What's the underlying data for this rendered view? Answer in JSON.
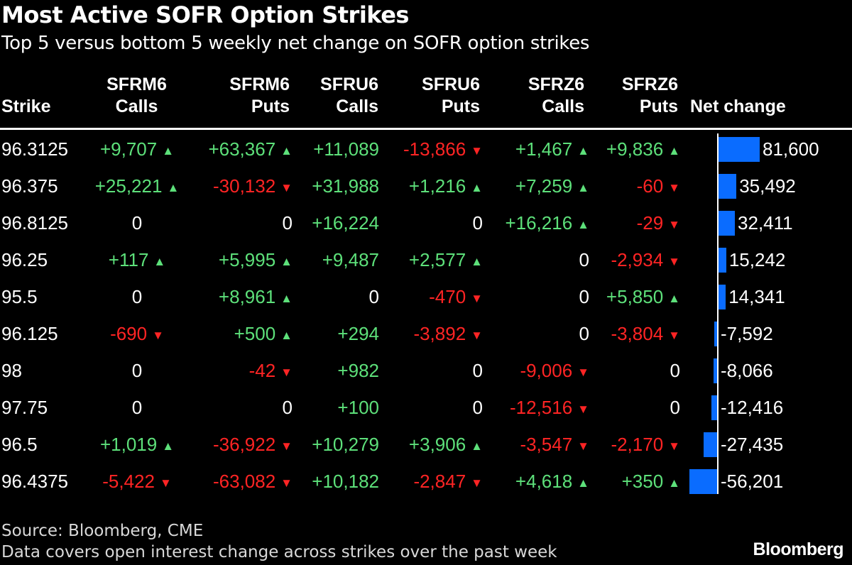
{
  "title": "Most Active SOFR Option Strikes",
  "subtitle": "Top 5 versus bottom 5 weekly net change on SOFR option strikes",
  "columns": [
    {
      "line1": "",
      "line2": "Strike"
    },
    {
      "line1": "SFRM6",
      "line2": "Calls"
    },
    {
      "line1": "SFRM6",
      "line2": "Puts"
    },
    {
      "line1": "SFRU6",
      "line2": "Calls"
    },
    {
      "line1": "SFRU6",
      "line2": "Puts"
    },
    {
      "line1": "SFRZ6",
      "line2": "Calls"
    },
    {
      "line1": "SFRZ6",
      "line2": "Puts"
    },
    {
      "line1": "",
      "line2": "Net change"
    }
  ],
  "colors": {
    "positive": "#5de07a",
    "negative": "#ff2424",
    "bar": "#0a6cff",
    "background": "#000000"
  },
  "chart_data": {
    "type": "table",
    "title": "Most Active SOFR Option Strikes",
    "subtitle": "Top 5 versus bottom 5 weekly net change on SOFR option strikes",
    "rows": [
      {
        "strike": "96.3125",
        "cells": [
          "+9,707",
          "+63,367",
          "+11,089",
          "-13,866",
          "+1,467",
          "+9,836"
        ],
        "net": 81600,
        "net_label": "81,600"
      },
      {
        "strike": "96.375",
        "cells": [
          "+25,221",
          "-30,132",
          "+31,988",
          "+1,216",
          "+7,259",
          "-60"
        ],
        "net": 35492,
        "net_label": "35,492"
      },
      {
        "strike": "96.8125",
        "cells": [
          "0",
          "0",
          "+16,224",
          "0",
          "+16,216",
          "-29"
        ],
        "net": 32411,
        "net_label": "32,411"
      },
      {
        "strike": "96.25",
        "cells": [
          "+117",
          "+5,995",
          "+9,487",
          "+2,577",
          "0",
          "-2,934"
        ],
        "net": 15242,
        "net_label": "15,242"
      },
      {
        "strike": "95.5",
        "cells": [
          "0",
          "+8,961",
          "0",
          "-470",
          "0",
          "+5,850"
        ],
        "net": 14341,
        "net_label": "14,341"
      },
      {
        "strike": "96.125",
        "cells": [
          "-690",
          "+500",
          "+294",
          "-3,892",
          "0",
          "-3,804"
        ],
        "net": -7592,
        "net_label": "-7,592"
      },
      {
        "strike": "98",
        "cells": [
          "0",
          "-42",
          "+982",
          "0",
          "-9,006",
          "0"
        ],
        "net": -8066,
        "net_label": "-8,066"
      },
      {
        "strike": "97.75",
        "cells": [
          "0",
          "0",
          "+100",
          "0",
          "-12,516",
          "0"
        ],
        "net": -12416,
        "net_label": "-12,416"
      },
      {
        "strike": "96.5",
        "cells": [
          "+1,019",
          "-36,922",
          "+10,279",
          "+3,906",
          "-3,547",
          "-2,170"
        ],
        "net": -27435,
        "net_label": "-27,435"
      },
      {
        "strike": "96.4375",
        "cells": [
          "-5,422",
          "-63,082",
          "+10,182",
          "-2,847",
          "+4,618",
          "+350"
        ],
        "net": -56201,
        "net_label": "-56,201"
      }
    ],
    "arrow_columns": [
      true,
      true,
      false,
      true,
      true,
      true
    ]
  },
  "footer": {
    "source": "Source: Bloomberg, CME",
    "note": "Data covers open interest change across strikes over the past week",
    "logo": "Bloomberg"
  }
}
